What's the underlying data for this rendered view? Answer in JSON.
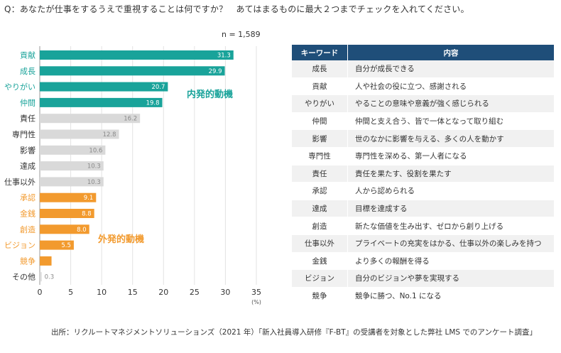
{
  "question": "Q：あなたが仕事をするうえで重視することは何ですか？　あてはまるものに最大２つまでチェックを入れてください。",
  "sample_size": "n = 1,589",
  "colors": {
    "intrinsic": "#19a39a",
    "neutral": "#d9d9d9",
    "extrinsic": "#f29a2e",
    "header": "#1f4e79"
  },
  "chart_data": {
    "type": "bar",
    "orientation": "horizontal",
    "categories": [
      "貢献",
      "成長",
      "やりがい",
      "仲間",
      "責任",
      "専門性",
      "影響",
      "達成",
      "仕事以外",
      "承認",
      "金銭",
      "創造",
      "ビジョン",
      "競争",
      "その他"
    ],
    "values": [
      31.3,
      29.9,
      20.7,
      19.8,
      16.2,
      12.8,
      10.6,
      10.3,
      10.3,
      9.1,
      8.8,
      8.0,
      5.5,
      1.9,
      0.3
    ],
    "value_labels": [
      "31.3",
      "29.9",
      "20.7",
      "19.8",
      "16.2",
      "12.8",
      "10.6",
      "10.3",
      "10.3",
      "9.1",
      "8.8",
      "8.0",
      "5.5",
      "",
      "0.3"
    ],
    "groups": [
      "intrinsic",
      "intrinsic",
      "intrinsic",
      "intrinsic",
      "neutral",
      "neutral",
      "neutral",
      "neutral",
      "neutral",
      "extrinsic",
      "extrinsic",
      "extrinsic",
      "extrinsic",
      "extrinsic",
      "neutral"
    ],
    "xlim": [
      0,
      35
    ],
    "xticks": [
      0,
      5,
      10,
      15,
      20,
      25,
      30,
      35
    ],
    "xunit": "(%)",
    "annotations": [
      "内発的動機",
      "外発的動機"
    ],
    "grid": true
  },
  "table": {
    "headers": [
      "キーワード",
      "内容"
    ],
    "rows": [
      [
        "成長",
        "自分が成長できる"
      ],
      [
        "貢献",
        "人や社会の役に立つ、感謝される"
      ],
      [
        "やりがい",
        "やることの意味や意義が強く感じられる"
      ],
      [
        "仲間",
        "仲間と支え合う、皆で一体となって取り組む"
      ],
      [
        "影響",
        "世のなかに影響を与える、多くの人を動かす"
      ],
      [
        "専門性",
        "専門性を深める、第一人者になる"
      ],
      [
        "責任",
        "責任を果たす、役割を果たす"
      ],
      [
        "承認",
        "人から認められる"
      ],
      [
        "達成",
        "目標を達成する"
      ],
      [
        "創造",
        "新たな価値を生み出す、ゼロから創り上げる"
      ],
      [
        "仕事以外",
        "プライベートの充実をはかる、仕事以外の楽しみを持つ"
      ],
      [
        "金銭",
        "より多くの報酬を得る"
      ],
      [
        "ビジョン",
        "自分のビジョンや夢を実現する"
      ],
      [
        "競争",
        "競争に勝つ、No.1 になる"
      ]
    ]
  },
  "source": "出所：リクルートマネジメントソリューションズ（2021 年）「新入社員導入研修『F-BT』の受講者を対象とした弊社 LMS でのアンケート調査」"
}
